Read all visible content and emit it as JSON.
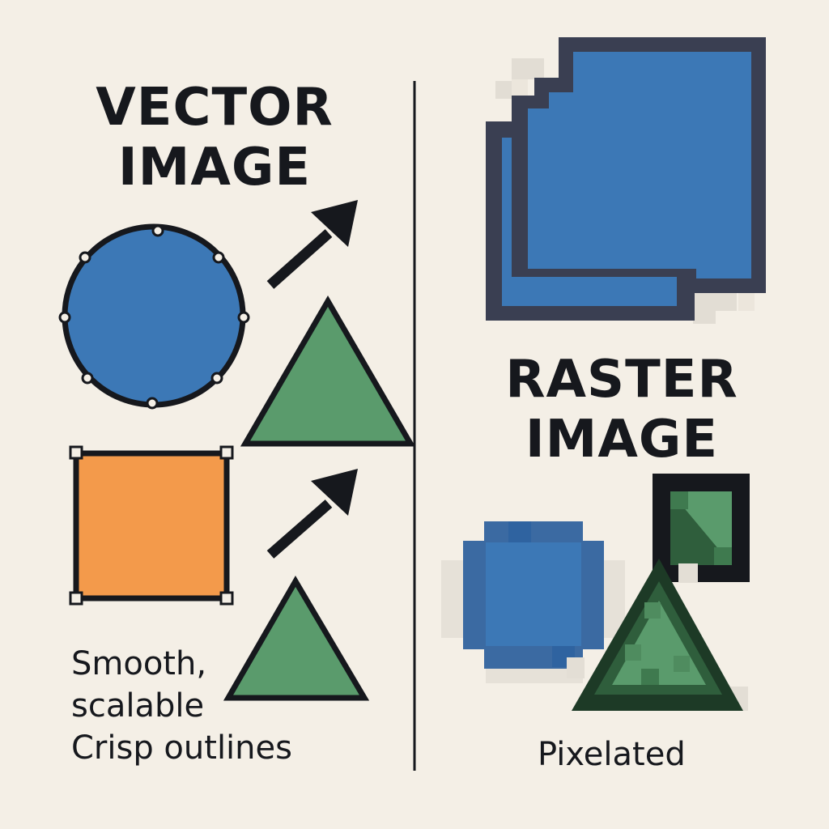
{
  "colors": {
    "background": "#f4efe6",
    "ink": "#16181d",
    "blue": "#3c78b6",
    "blue_dark": "#2f63a0",
    "orange": "#f39a4b",
    "green": "#5a9b6c",
    "green_dark": "#2f5e3c",
    "outline_dark": "#3a3f52"
  },
  "vector": {
    "heading_line1": "VECTOR",
    "heading_line2": "IMAGE",
    "caption_line1": "Smooth,",
    "caption_line2": "scalable",
    "caption_line3": "Crisp outlines",
    "shapes": [
      "circle-with-anchor-points",
      "square-with-handles",
      "triangle",
      "triangle"
    ],
    "icons": [
      "arrow-up-right-icon",
      "arrow-up-right-icon"
    ]
  },
  "raster": {
    "heading_line1": "RASTER",
    "heading_line2": "IMAGE",
    "caption": "Pixelated",
    "shapes": [
      "pixelated-square",
      "pixelated-circle",
      "pixelated-triangle",
      "pixelated-square-with-triangle"
    ]
  }
}
